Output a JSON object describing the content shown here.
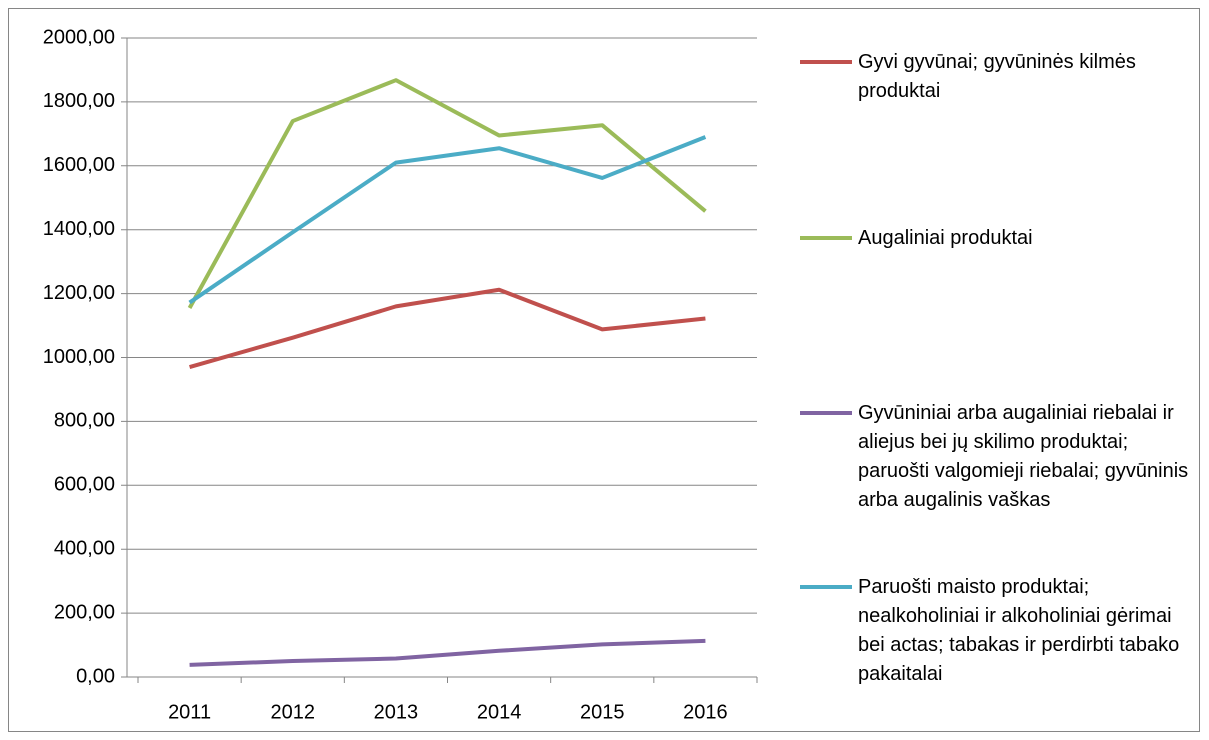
{
  "chart_data": {
    "type": "line",
    "categories": [
      "2011",
      "2012",
      "2013",
      "2014",
      "2015",
      "2016"
    ],
    "series": [
      {
        "name": "Gyvi gyvūnai; gyvūninės kilmės produktai",
        "color": "#c0504d",
        "values": [
          970,
          1062,
          1160,
          1212,
          1088,
          1122
        ]
      },
      {
        "name": "Augaliniai produktai",
        "color": "#9bbb59",
        "values": [
          1155,
          1740,
          1868,
          1695,
          1727,
          1458
        ]
      },
      {
        "name": "Gyvūniniai arba augaliniai riebalai ir aliejus bei jų skilimo produktai; paruošti valgomieji riebalai; gyvūninis arba augalinis vaškas",
        "color": "#8064a2",
        "values": [
          38,
          50,
          58,
          82,
          102,
          113
        ]
      },
      {
        "name": "Paruošti maisto produktai; nealkoholiniai ir alkoholiniai gėrimai bei actas; tabakas ir perdirbti tabako pakaitalai",
        "color": "#4bacc6",
        "values": [
          1172,
          1392,
          1610,
          1655,
          1562,
          1690
        ]
      }
    ],
    "ylim": [
      0,
      2000
    ],
    "yticks": [
      {
        "value": 0,
        "label": "0,00"
      },
      {
        "value": 200,
        "label": "200,00"
      },
      {
        "value": 400,
        "label": "400,00"
      },
      {
        "value": 600,
        "label": "600,00"
      },
      {
        "value": 800,
        "label": "800,00"
      },
      {
        "value": 1000,
        "label": "1000,00"
      },
      {
        "value": 1200,
        "label": "1200,00"
      },
      {
        "value": 1400,
        "label": "1400,00"
      },
      {
        "value": 1600,
        "label": "1600,00"
      },
      {
        "value": 1800,
        "label": "1800,00"
      },
      {
        "value": 2000,
        "label": "2000,00"
      }
    ],
    "grid": true,
    "legend": "right"
  }
}
